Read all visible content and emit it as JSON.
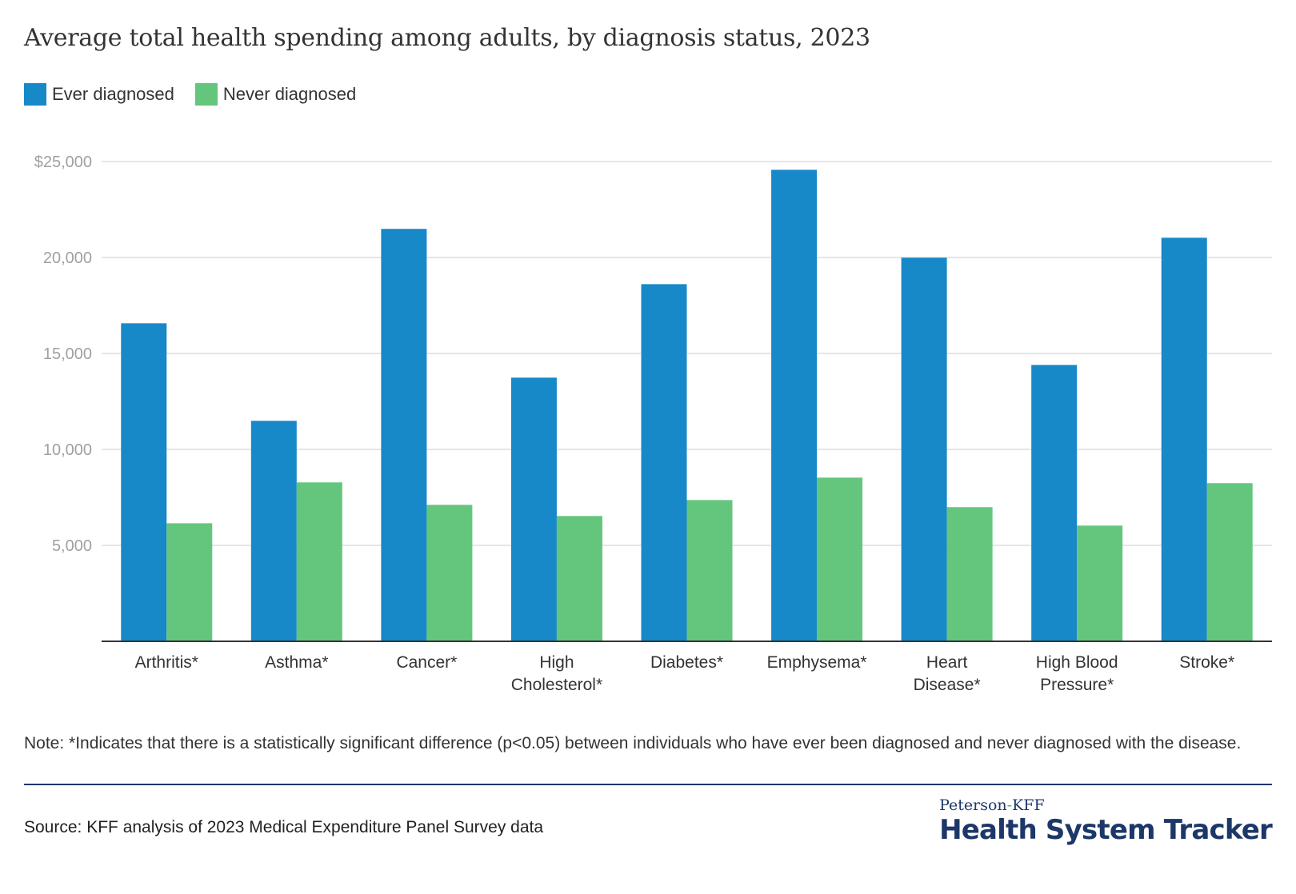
{
  "title": "Average total health spending among adults, by diagnosis status, 2023",
  "legend": [
    {
      "label": "Ever diagnosed",
      "color": "#1789c8"
    },
    {
      "label": "Never diagnosed",
      "color": "#64c67d"
    }
  ],
  "note": "Note: *Indicates that there is a statistically significant difference (p<0.05) between individuals who have ever been diagnosed and never diagnosed with the disease.",
  "source": "Source: KFF analysis of 2023 Medical Expenditure Panel Survey data",
  "logo": {
    "line1_part1": "Peterson",
    "line1_hyphen": "-",
    "line1_part2": "KFF",
    "line2": "Health System Tracker"
  },
  "chart_data": {
    "type": "bar",
    "title": "Average total health spending among adults, by diagnosis status, 2023",
    "xlabel": "",
    "ylabel": "",
    "ylim": [
      0,
      25000
    ],
    "yticks": [
      5000,
      10000,
      15000,
      20000,
      25000
    ],
    "ytick_labels": [
      "5,000",
      "10,000",
      "15,000",
      "20,000",
      "$25,000"
    ],
    "grid": true,
    "legend_position": "top-left",
    "categories": [
      [
        "Arthritis*"
      ],
      [
        "Asthma*"
      ],
      [
        "Cancer*"
      ],
      [
        "High",
        "Cholesterol*"
      ],
      [
        "Diabetes*"
      ],
      [
        "Emphysema*"
      ],
      [
        "Heart",
        "Disease*"
      ],
      [
        "High Blood",
        "Pressure*"
      ],
      [
        "Stroke*"
      ]
    ],
    "series": [
      {
        "name": "Ever diagnosed",
        "color": "#1789c8",
        "values": [
          16570,
          11490,
          21490,
          13740,
          18610,
          24570,
          19990,
          14400,
          21030
        ]
      },
      {
        "name": "Never diagnosed",
        "color": "#64c67d",
        "values": [
          6150,
          8280,
          7110,
          6530,
          7360,
          8530,
          6990,
          6030,
          8240
        ]
      }
    ]
  }
}
